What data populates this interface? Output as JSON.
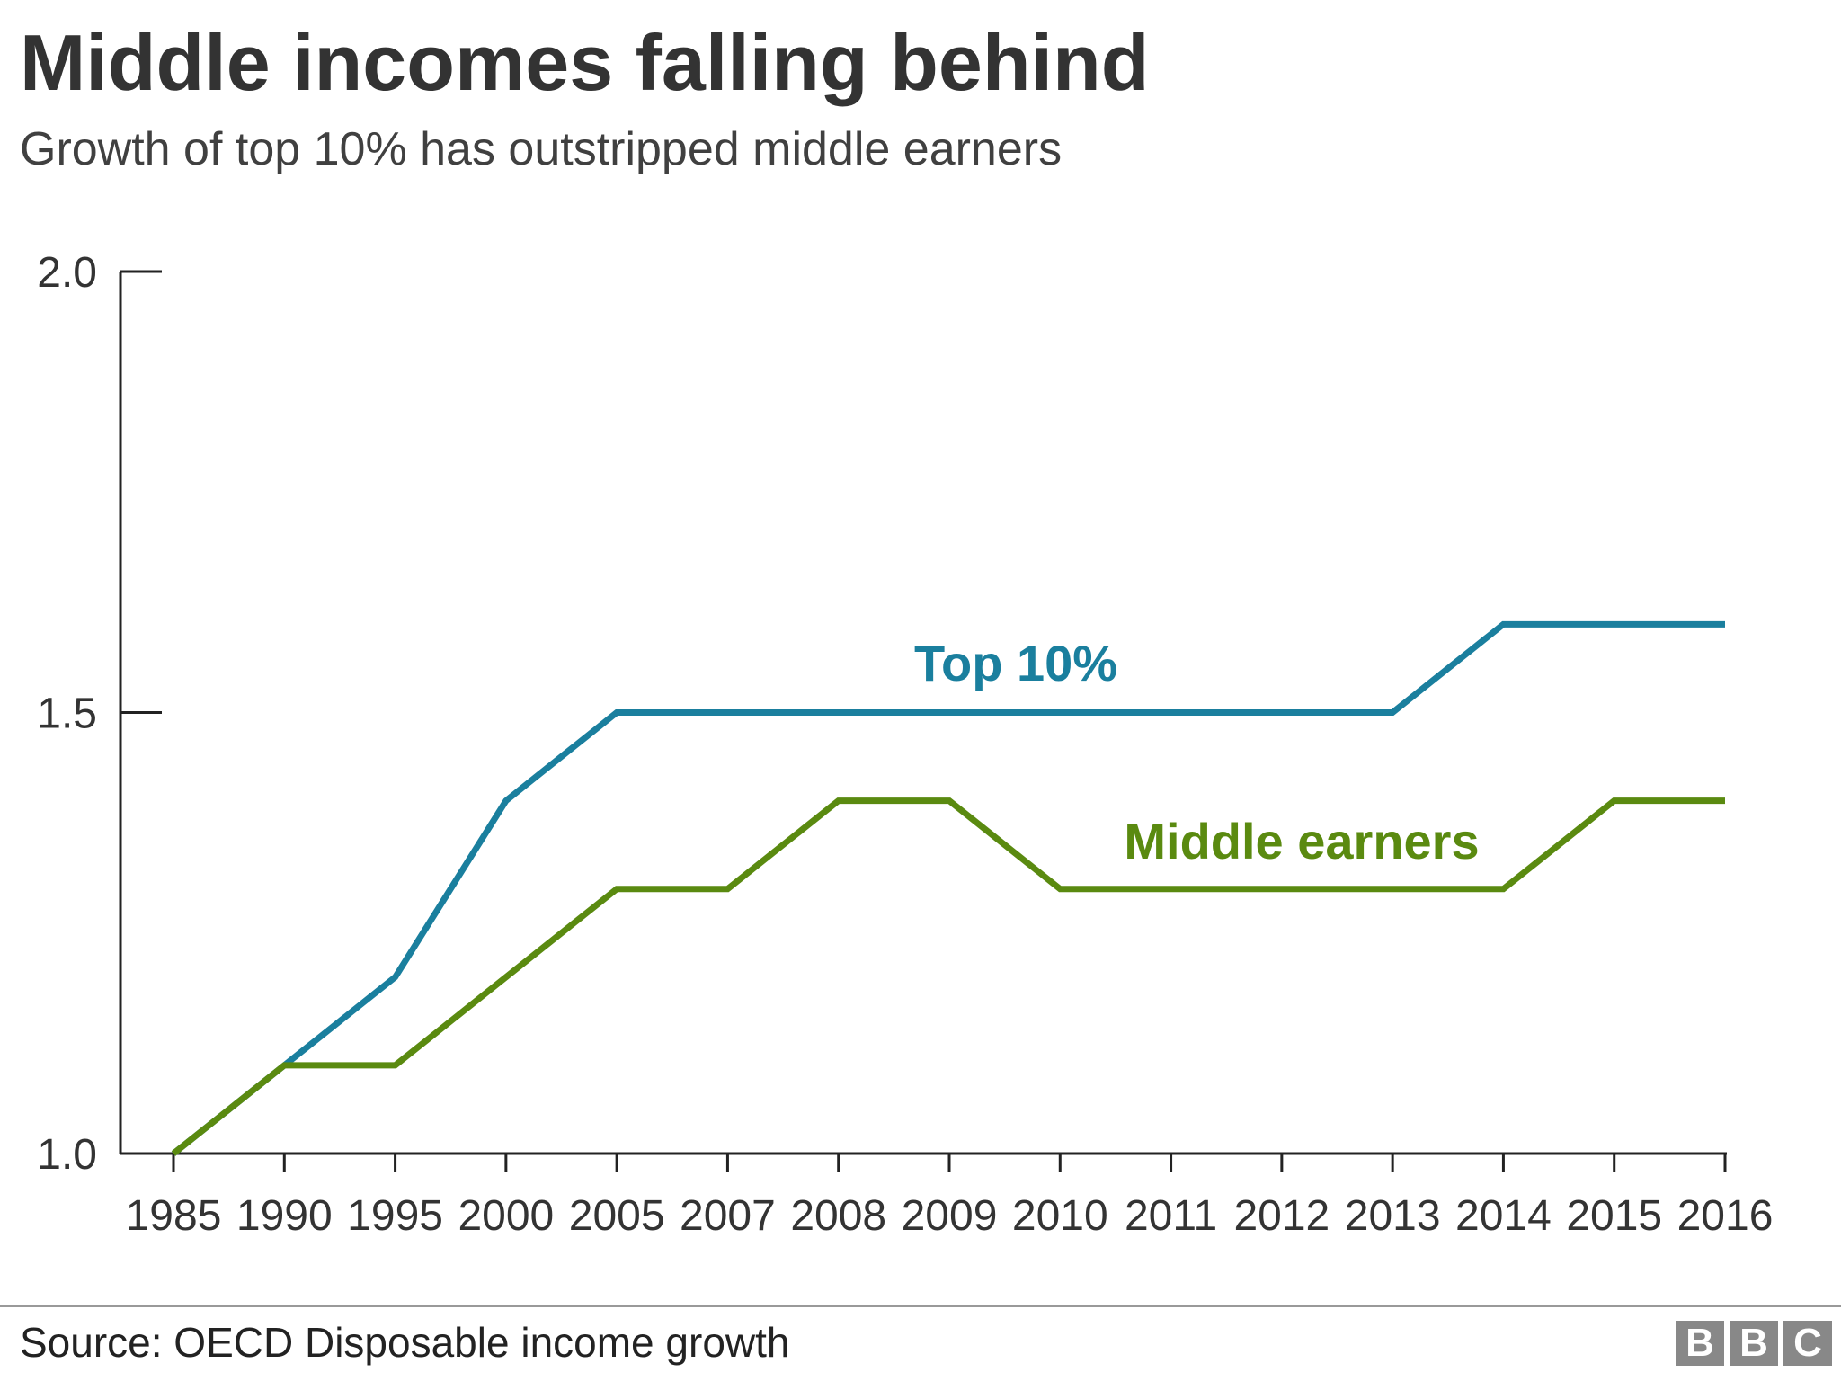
{
  "title": "Middle incomes falling behind",
  "subtitle": "Growth of top 10% has outstripped middle earners",
  "source": "Source: OECD Disposable income growth",
  "logo": [
    "B",
    "B",
    "C"
  ],
  "colors": {
    "top10": "#1a7f9e",
    "middle": "#5a8a10",
    "axis": "#222222",
    "text": "#333333"
  },
  "chart_data": {
    "type": "line",
    "title": "Middle incomes falling behind",
    "subtitle": "Growth of top 10% has outstripped middle earners",
    "xlabel": "",
    "ylabel": "",
    "x": [
      "1985",
      "1990",
      "1995",
      "2000",
      "2005",
      "2007",
      "2008",
      "2009",
      "2010",
      "2011",
      "2012",
      "2013",
      "2014",
      "2015",
      "2016"
    ],
    "ylim": [
      1.0,
      2.0
    ],
    "yticks": [
      "1.0",
      "1.5",
      "2.0"
    ],
    "grid": false,
    "legend": "inline labels",
    "series": [
      {
        "name": "Top 10%",
        "color": "#1a7f9e",
        "values": [
          1.0,
          1.1,
          1.2,
          1.4,
          1.5,
          1.5,
          1.5,
          1.5,
          1.5,
          1.5,
          1.5,
          1.5,
          1.6,
          1.6,
          1.6
        ]
      },
      {
        "name": "Middle earners",
        "color": "#5a8a10",
        "values": [
          1.0,
          1.1,
          1.1,
          1.2,
          1.3,
          1.3,
          1.4,
          1.4,
          1.3,
          1.3,
          1.3,
          1.3,
          1.3,
          1.4,
          1.4
        ]
      }
    ]
  }
}
